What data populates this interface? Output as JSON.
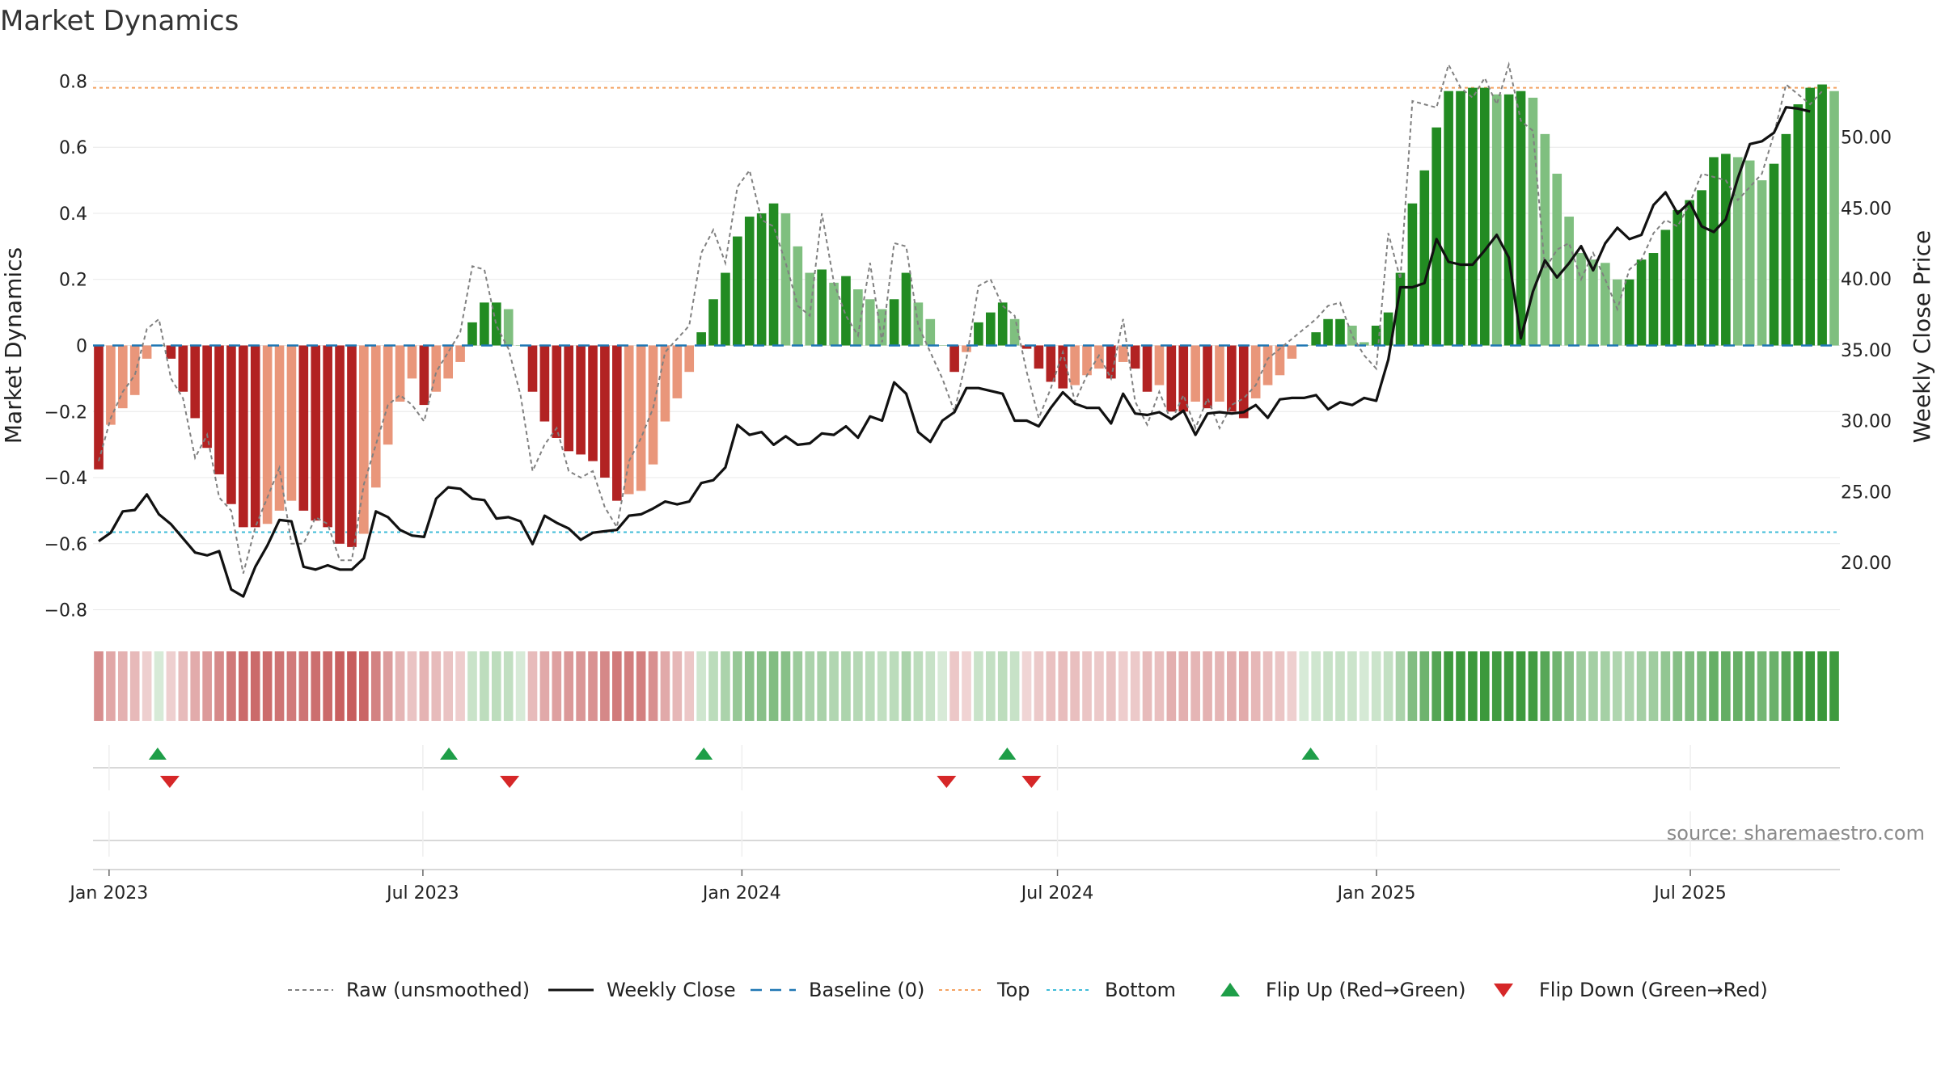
{
  "title": "Market Dynamics",
  "source": "source: sharemaestro.com",
  "colors": {
    "strong_red": "#b22222",
    "weak_red": "#e9967a",
    "strong_green": "#228b22",
    "weak_green": "#7fbf7f",
    "close_line": "#111111",
    "raw_line": "#808080",
    "baseline": "#1f77b4",
    "top": "#f4a261",
    "bottom": "#3fbcd8",
    "flip_up": "#1e9e48",
    "flip_down": "#d62728"
  },
  "chart_data": {
    "type": "bar",
    "title": "Market Dynamics",
    "left_axis": {
      "label": "Market Dynamics",
      "range": [
        -0.85,
        0.85
      ],
      "ticks": [
        "0.8",
        "0.6",
        "0.4",
        "0.2",
        "0",
        "−0.2",
        "−0.4",
        "−0.6",
        "−0.8"
      ]
    },
    "right_axis": {
      "label": "Weekly Close Price",
      "range": [
        15.5,
        55.1
      ],
      "ticks": [
        "50.00",
        "45.00",
        "40.00",
        "35.00",
        "30.00",
        "25.00",
        "20.00"
      ]
    },
    "x_axis": {
      "start": "2022-12-26",
      "end": "2025-09-22",
      "ticks": [
        {
          "label": "Jan 2023",
          "date": "2023-01-01"
        },
        {
          "label": "Jul 2023",
          "date": "2023-07-01"
        },
        {
          "label": "Jan 2024",
          "date": "2024-01-01"
        },
        {
          "label": "Jul 2024",
          "date": "2024-07-01"
        },
        {
          "label": "Jan 2025",
          "date": "2025-01-01"
        },
        {
          "label": "Jul 2025",
          "date": "2025-07-01"
        }
      ]
    },
    "top_line": 0.78,
    "bottom_line": -0.565,
    "baseline": 0,
    "series": [
      {
        "name": "Market Dynamics (smoothed)",
        "values": [
          -0.375,
          -0.24,
          -0.19,
          -0.15,
          -0.04,
          0,
          -0.04,
          -0.14,
          -0.22,
          -0.31,
          -0.39,
          -0.48,
          -0.55,
          -0.55,
          -0.54,
          -0.5,
          -0.47,
          -0.5,
          -0.53,
          -0.55,
          -0.6,
          -0.61,
          -0.57,
          -0.43,
          -0.3,
          -0.17,
          -0.1,
          -0.18,
          -0.14,
          -0.1,
          -0.05,
          0.07,
          0.13,
          0.13,
          0.11,
          0,
          -0.14,
          -0.23,
          -0.28,
          -0.32,
          -0.33,
          -0.35,
          -0.4,
          -0.47,
          -0.45,
          -0.44,
          -0.36,
          -0.23,
          -0.16,
          -0.08,
          0.04,
          0.14,
          0.22,
          0.33,
          0.39,
          0.4,
          0.43,
          0.4,
          0.3,
          0.22,
          0.23,
          0.19,
          0.21,
          0.17,
          0.14,
          0.11,
          0.14,
          0.22,
          0.13,
          0.08,
          0,
          -0.08,
          -0.02,
          0.07,
          0.1,
          0.13,
          0.08,
          -0.01,
          -0.07,
          -0.11,
          -0.13,
          -0.12,
          -0.09,
          -0.07,
          -0.1,
          -0.05,
          -0.07,
          -0.14,
          -0.12,
          -0.2,
          -0.2,
          -0.17,
          -0.19,
          -0.17,
          -0.2,
          -0.22,
          -0.16,
          -0.12,
          -0.09,
          -0.04,
          0,
          0.04,
          0.08,
          0.08,
          0.06,
          0.01,
          0.06,
          0.1,
          0.22,
          0.43,
          0.53,
          0.66,
          0.77,
          0.77,
          0.78,
          0.78,
          0.76,
          0.76,
          0.77,
          0.75,
          0.64,
          0.52,
          0.39,
          0.28,
          0.26,
          0.25,
          0.2,
          0.2,
          0.26,
          0.28,
          0.35,
          0.41,
          0.44,
          0.47,
          0.57,
          0.58,
          0.57,
          0.56,
          0.5,
          0.55,
          0.64,
          0.73,
          0.78,
          0.79,
          0.77
        ]
      },
      {
        "name": "Raw (unsmoothed)",
        "values": [
          -0.35,
          -0.22,
          -0.14,
          -0.09,
          0.05,
          0.08,
          -0.1,
          -0.16,
          -0.34,
          -0.27,
          -0.46,
          -0.5,
          -0.69,
          -0.55,
          -0.46,
          -0.37,
          -0.6,
          -0.6,
          -0.52,
          -0.54,
          -0.65,
          -0.65,
          -0.42,
          -0.3,
          -0.18,
          -0.15,
          -0.18,
          -0.23,
          -0.08,
          -0.02,
          0.04,
          0.24,
          0.23,
          0.06,
          -0.01,
          -0.15,
          -0.38,
          -0.3,
          -0.25,
          -0.38,
          -0.4,
          -0.38,
          -0.49,
          -0.55,
          -0.35,
          -0.28,
          -0.19,
          -0.02,
          0.02,
          0.06,
          0.28,
          0.35,
          0.25,
          0.48,
          0.53,
          0.38,
          0.36,
          0.25,
          0.12,
          0.09,
          0.4,
          0.19,
          0.09,
          0.03,
          0.25,
          0.01,
          0.31,
          0.3,
          0.06,
          -0.02,
          -0.1,
          -0.2,
          -0.04,
          0.18,
          0.2,
          0.12,
          0.09,
          -0.08,
          -0.22,
          -0.13,
          -0.02,
          -0.17,
          -0.09,
          -0.03,
          -0.1,
          0.08,
          -0.17,
          -0.24,
          -0.14,
          -0.23,
          -0.15,
          -0.25,
          -0.16,
          -0.25,
          -0.18,
          -0.16,
          -0.12,
          -0.04,
          -0.01,
          0.02,
          0.05,
          0.08,
          0.12,
          0.13,
          0.03,
          -0.03,
          -0.07,
          0.34,
          0.2,
          0.74,
          0.73,
          0.72,
          0.85,
          0.78,
          0.75,
          0.81,
          0.73,
          0.85,
          0.68,
          0.65,
          0.23,
          0.29,
          0.31,
          0.2,
          0.28,
          0.2,
          0.11,
          0.23,
          0.26,
          0.34,
          0.38,
          0.36,
          0.43,
          0.52,
          0.51,
          0.5,
          0.44,
          0.48,
          0.52,
          0.64,
          0.79,
          0.76,
          0.73,
          0.77
        ]
      },
      {
        "name": "Weekly Close",
        "values": [
          21.5,
          22.1,
          23.6,
          23.7,
          24.8,
          23.4,
          22.7,
          21.7,
          20.7,
          20.5,
          20.8,
          18.1,
          17.6,
          19.7,
          21.2,
          23.0,
          22.9,
          19.7,
          19.5,
          19.8,
          19.5,
          19.5,
          20.3,
          23.6,
          23.2,
          22.3,
          21.9,
          21.8,
          24.5,
          25.3,
          25.2,
          24.5,
          24.4,
          23.1,
          23.2,
          22.9,
          21.3,
          23.3,
          22.8,
          22.4,
          21.6,
          22.1,
          22.2,
          22.3,
          23.3,
          23.4,
          23.8,
          24.3,
          24.1,
          24.3,
          25.6,
          25.8,
          26.7,
          29.7,
          29.0,
          29.2,
          28.3,
          28.9,
          28.3,
          28.4,
          29.1,
          29.0,
          29.6,
          28.8,
          30.3,
          30.0,
          32.7,
          31.9,
          29.2,
          28.5,
          30.0,
          30.6,
          32.3,
          32.3,
          32.1,
          31.9,
          30.0,
          30.0,
          29.6,
          30.9,
          32.0,
          31.2,
          30.9,
          30.9,
          29.8,
          31.9,
          30.5,
          30.4,
          30.6,
          30.1,
          30.7,
          29.0,
          30.5,
          30.6,
          30.5,
          30.6,
          31.1,
          30.2,
          31.5,
          31.6,
          31.6,
          31.8,
          30.8,
          31.3,
          31.1,
          31.6,
          31.4,
          34.3,
          39.4,
          39.4,
          39.7,
          42.8,
          41.2,
          41.0,
          41.0,
          42.0,
          43.1,
          41.5,
          35.8,
          39.1,
          41.3,
          40.1,
          41.1,
          42.3,
          40.6,
          42.5,
          43.6,
          42.8,
          43.1,
          45.2,
          46.1,
          44.6,
          45.4,
          43.7,
          43.3,
          44.2,
          47.1,
          49.5,
          49.7,
          50.3,
          52.1,
          52.0,
          51.8
        ]
      }
    ],
    "flip_up_dates": [
      "2023-01-29",
      "2023-07-16",
      "2023-12-10",
      "2024-06-02",
      "2024-11-24"
    ],
    "flip_down_dates": [
      "2023-02-05",
      "2023-08-20",
      "2024-04-28",
      "2024-06-16"
    ],
    "legend": {
      "position": "bottom",
      "entries": [
        {
          "label": "Raw (unsmoothed)",
          "style": "raw"
        },
        {
          "label": "Weekly Close",
          "style": "close"
        },
        {
          "label": "Baseline (0)",
          "style": "baseline"
        },
        {
          "label": "Top",
          "style": "top"
        },
        {
          "label": "Bottom",
          "style": "bottom"
        },
        {
          "label": "Flip Up (Red→Green)",
          "style": "flip-up"
        },
        {
          "label": "Flip Down (Green→Red)",
          "style": "flip-down"
        }
      ]
    }
  }
}
